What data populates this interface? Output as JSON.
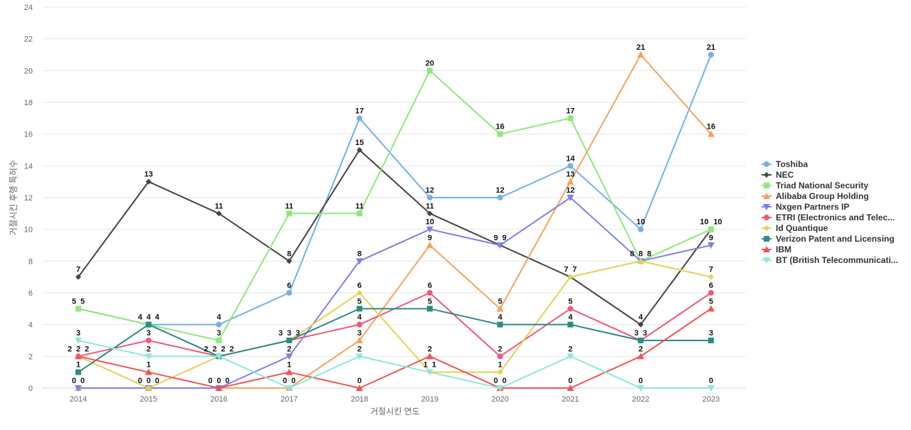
{
  "chart_data": {
    "type": "line",
    "xlabel": "거절시킨 연도",
    "ylabel": "거절시킨 후행 특허수",
    "ylim": [
      0,
      24
    ],
    "yticks": [
      0,
      2,
      4,
      6,
      8,
      10,
      12,
      14,
      16,
      18,
      20,
      22,
      24
    ],
    "grid": true,
    "legend_position": "right",
    "categories": [
      "2014",
      "2015",
      "2016",
      "2017",
      "2018",
      "2019",
      "2020",
      "2021",
      "2022",
      "2023"
    ],
    "series": [
      {
        "name": "Toshiba",
        "color": "#74b0e8",
        "marker": "circle",
        "values": [
          5,
          4,
          4,
          6,
          17,
          12,
          12,
          14,
          10,
          21
        ]
      },
      {
        "name": "NEC",
        "color": "#444444",
        "marker": "diamond",
        "values": [
          7,
          13,
          11,
          8,
          15,
          11,
          9,
          7,
          4,
          10
        ]
      },
      {
        "name": "Triad National Security",
        "color": "#8ee87a",
        "marker": "square",
        "values": [
          5,
          4,
          3,
          11,
          11,
          20,
          16,
          17,
          8,
          10
        ]
      },
      {
        "name": "Alibaba Group Holding",
        "color": "#f6a35a",
        "marker": "triangle",
        "values": [
          0,
          0,
          0,
          0,
          3,
          9,
          5,
          13,
          21,
          16
        ]
      },
      {
        "name": "Nxgen Partners IP",
        "color": "#8080e8",
        "marker": "triangle-down",
        "values": [
          0,
          0,
          0,
          2,
          8,
          10,
          9,
          12,
          8,
          9
        ]
      },
      {
        "name": "ETRI (Electronics and Telec...",
        "color": "#f0577a",
        "marker": "circle",
        "values": [
          2,
          3,
          2,
          3,
          4,
          6,
          2,
          5,
          3,
          6
        ]
      },
      {
        "name": "Id Quantique",
        "color": "#e5d154",
        "marker": "diamond",
        "values": [
          2,
          0,
          2,
          3,
          6,
          1,
          1,
          7,
          8,
          7
        ]
      },
      {
        "name": "Verizon Patent and Licensing",
        "color": "#2a8c86",
        "marker": "square",
        "values": [
          1,
          4,
          2,
          3,
          5,
          5,
          4,
          4,
          3,
          3
        ]
      },
      {
        "name": "IBM",
        "color": "#f05454",
        "marker": "triangle",
        "values": [
          2,
          1,
          0,
          1,
          0,
          2,
          0,
          0,
          2,
          5
        ]
      },
      {
        "name": "BT (British Telecommunicati...",
        "color": "#8ee8de",
        "marker": "triangle-down",
        "values": [
          3,
          2,
          2,
          0,
          2,
          1,
          0,
          2,
          0,
          0
        ]
      }
    ]
  }
}
